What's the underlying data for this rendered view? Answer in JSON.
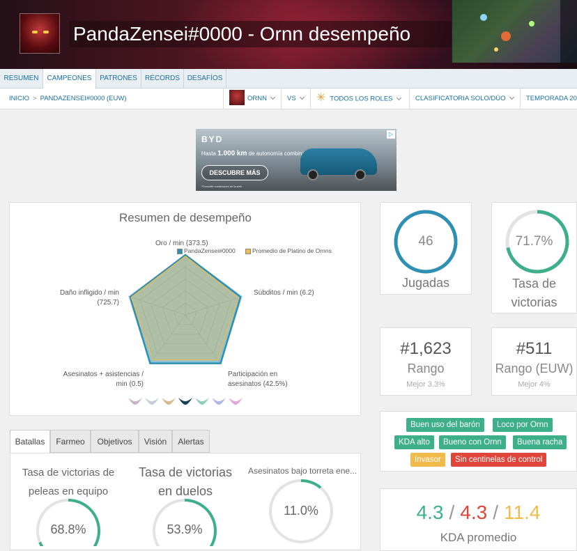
{
  "header": {
    "title": "PandaZensei#0000 - Ornn desempeño",
    "avatar_icon": "ornn-portrait-icon"
  },
  "nav_tabs": [
    {
      "label": "Resumen",
      "active": false
    },
    {
      "label": "Campeones",
      "active": true
    },
    {
      "label": "Patrones",
      "active": false
    },
    {
      "label": "Récords",
      "active": false
    },
    {
      "label": "Desafíos",
      "active": false
    }
  ],
  "breadcrumb": {
    "home": "INICIO",
    "separator": ">",
    "player": "PANDAZENSEI#0000 (EUW)"
  },
  "filters": {
    "champion": "ORNN",
    "vs": "VS",
    "role": "TODOS LOS ROLES",
    "queue": "CLASIFICATORIA SOLO/DÚO",
    "season": "TEMPORADA 20"
  },
  "ad": {
    "brand": "BYD",
    "line_prefix": "Hasta ",
    "line_bold": "1.000 km",
    "line_suffix": " de autonomía combinada",
    "cta": "DESCUBRE MÁS",
    "legal": "*Consulte condiciones en la web",
    "choice": "▷"
  },
  "performance": {
    "title": "Resumen de desempeño",
    "legend": {
      "player": "PandaZensei#0000",
      "average": "Promedio de Platino de Ornns",
      "player_color": "#2e8fb5",
      "average_color": "#f0bb4a"
    },
    "labels": {
      "top": "Oro / min (373.5)",
      "right": "Súbditos / min (6.2)",
      "bottom_right_1": "Participación en",
      "bottom_right_2": "asesinatos (42.5%)",
      "bottom_left_1": "Asesinatos + asistencias /",
      "bottom_left_2": "min (0.5)",
      "left_1": "Daño infligido / min",
      "left_2": "(725.7)"
    },
    "player_values": [
      1.0,
      0.97,
      1.0,
      1.0,
      0.97
    ],
    "average_values": [
      0.98,
      0.93,
      0.93,
      0.93,
      0.95
    ]
  },
  "stats": {
    "games": {
      "value": "46",
      "label": "Jugadas",
      "fraction": 1.0,
      "color": "#2e8fb5"
    },
    "winrate": {
      "value": "71.7%",
      "label_1": "Tasa de",
      "label_2": "victorias",
      "fraction": 0.717,
      "color": "#3db08a"
    }
  },
  "ranks": {
    "global": {
      "value": "#1,623",
      "label": "Rango",
      "sub": "Mejor 3.3%"
    },
    "region": {
      "value": "#511",
      "label": "Rango (EUW)",
      "sub": "Mejor 4%"
    }
  },
  "tags": [
    {
      "label": "Buen uso del barón",
      "color": "green"
    },
    {
      "label": "Loco por Ornn",
      "color": "green"
    },
    {
      "label": "KDA alto",
      "color": "green"
    },
    {
      "label": "Bueno con Ornn",
      "color": "green"
    },
    {
      "label": "Buena racha",
      "color": "green"
    },
    {
      "label": "Invasor",
      "color": "yellow"
    },
    {
      "label": "Sin centinelas de control",
      "color": "red"
    }
  ],
  "kda": {
    "kills": "4.3",
    "deaths": "4.3",
    "assists": "11.4",
    "sep": "/",
    "label": "KDA promedio"
  },
  "subtabs": [
    {
      "label": "Batallas",
      "active": true
    },
    {
      "label": "Farmeo",
      "active": false
    },
    {
      "label": "Objetivos",
      "active": false
    },
    {
      "label": "Visión",
      "active": false
    },
    {
      "label": "Alertas",
      "active": false
    }
  ],
  "battle": {
    "teamfights": {
      "title_1": "Tasa de victorias de",
      "title_2": "peleas en equipo",
      "value": "68.8%",
      "fraction": 0.688
    },
    "duels": {
      "title_1": "Tasa de victorias",
      "title_2": "en duelos",
      "value": "53.9%",
      "fraction": 0.539
    },
    "tower": {
      "title": "Asesinatos bajo torreta ene...",
      "value": "11.0%",
      "fraction": 0.11
    }
  },
  "colors": {
    "accent": "#1a6fa0",
    "green": "#3db08a",
    "blue": "#2e8fb5",
    "red": "#e0453a",
    "yellow": "#f0bb4a"
  }
}
